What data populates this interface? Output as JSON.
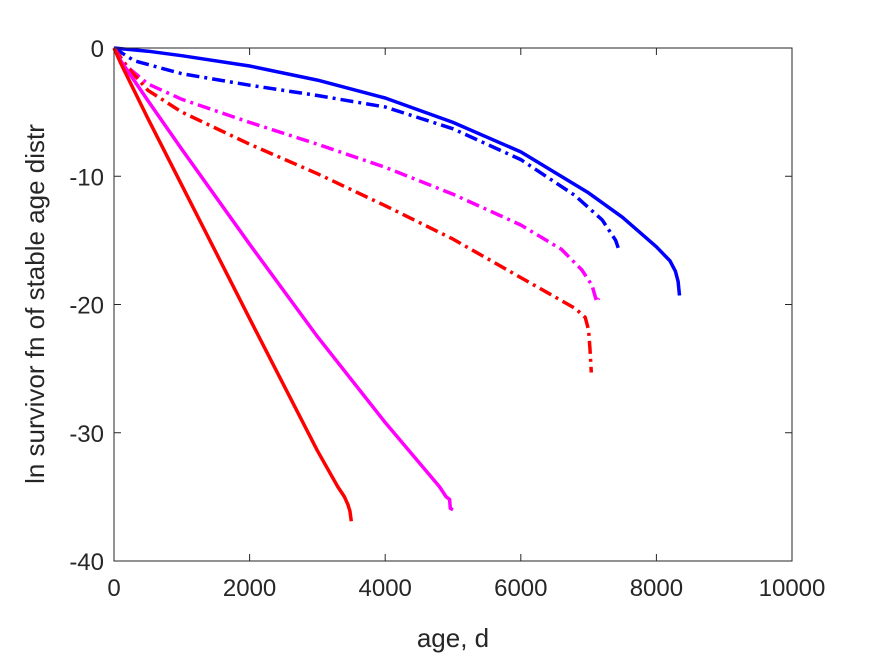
{
  "chart_data": {
    "type": "line",
    "title": "",
    "xlabel": "age, d",
    "ylabel": "ln survivor fn of stable age distr",
    "xlim": [
      0,
      10000
    ],
    "ylim": [
      -40,
      0
    ],
    "xticks": [
      0,
      2000,
      4000,
      6000,
      8000,
      10000
    ],
    "yticks": [
      0,
      -10,
      -20,
      -30,
      -40
    ],
    "xtick_labels": [
      "0",
      "2000",
      "4000",
      "6000",
      "8000",
      "10000"
    ],
    "ytick_labels": [
      "0",
      "-10",
      "-20",
      "-30",
      "-40"
    ],
    "grid": false,
    "legend": "none",
    "series": [
      {
        "color": "#0000ff",
        "style": "solid",
        "x": [
          0,
          500,
          1000,
          2000,
          3000,
          4000,
          5000,
          6000,
          7000,
          7500,
          8000,
          8200,
          8280,
          8320,
          8340
        ],
        "y": [
          0,
          -0.25,
          -0.6,
          -1.4,
          -2.5,
          -3.9,
          -5.8,
          -8.1,
          -11.3,
          -13.2,
          -15.5,
          -16.6,
          -17.4,
          -18.2,
          -19.3
        ]
      },
      {
        "color": "#0000ff",
        "style": "dashdot",
        "x": [
          0,
          300,
          1000,
          2000,
          3000,
          4000,
          5000,
          6000,
          6800,
          7200,
          7400,
          7450
        ],
        "y": [
          0,
          -1.0,
          -2.0,
          -2.9,
          -3.7,
          -4.6,
          -6.3,
          -8.7,
          -11.5,
          -13.4,
          -15.0,
          -15.8
        ]
      },
      {
        "color": "#ff00ff",
        "style": "dashdot",
        "x": [
          0,
          200,
          500,
          1000,
          2000,
          3000,
          4000,
          5000,
          6000,
          6600,
          6900,
          7050,
          7120,
          7150
        ],
        "y": [
          0,
          -1.5,
          -2.8,
          -4.0,
          -5.8,
          -7.5,
          -9.3,
          -11.4,
          -13.8,
          -15.7,
          -17.3,
          -18.5,
          -19.8,
          -19.5
        ]
      },
      {
        "color": "#ff0000",
        "style": "dashdot",
        "x": [
          0,
          200,
          500,
          1000,
          2000,
          3000,
          4000,
          5000,
          6000,
          6500,
          6800,
          6950,
          7000,
          7020,
          7040
        ],
        "y": [
          0,
          -1.5,
          -3.3,
          -5.0,
          -7.5,
          -9.8,
          -12.3,
          -14.9,
          -17.9,
          -19.4,
          -20.3,
          -21.0,
          -22.0,
          -23.5,
          -25.3
        ]
      },
      {
        "color": "#ff00ff",
        "style": "solid",
        "x": [
          0,
          100,
          500,
          1000,
          2000,
          3000,
          4000,
          4800,
          4900,
          4950,
          4960,
          5000
        ],
        "y": [
          0,
          -1.0,
          -4.1,
          -7.9,
          -15.3,
          -22.5,
          -29.2,
          -34.2,
          -35.0,
          -35.2,
          -35.9,
          -36.0
        ]
      },
      {
        "color": "#ff0000",
        "style": "solid",
        "x": [
          0,
          100,
          500,
          1000,
          2000,
          3000,
          3300,
          3400,
          3450,
          3480,
          3500
        ],
        "y": [
          0,
          -1.2,
          -5.5,
          -10.7,
          -21.1,
          -31.4,
          -34.2,
          -35.0,
          -35.6,
          -36.1,
          -36.9
        ]
      }
    ]
  }
}
